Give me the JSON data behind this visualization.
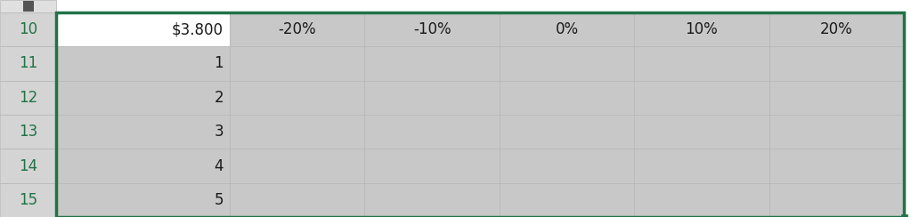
{
  "row_labels": [
    "10",
    "11",
    "12",
    "13",
    "14",
    "15"
  ],
  "header_white_cell_text": "$3.800",
  "col_headers": [
    "-20%",
    "-10%",
    "0%",
    "10%",
    "20%"
  ],
  "row_values": [
    "1",
    "2",
    "3",
    "4",
    "5"
  ],
  "cell_bg_grey": "#c8c8c8",
  "cell_bg_white": "#ffffff",
  "border_color": "#217346",
  "border_width": 2.5,
  "grid_line_color": "#b4b4b4",
  "font_size": 12,
  "row_num_font_size": 12,
  "row_num_text_color": "#217346",
  "fig_bg": "#ffffff",
  "outer_bg": "#ffffff",
  "row_num_col_bg": "#d4d4d4"
}
